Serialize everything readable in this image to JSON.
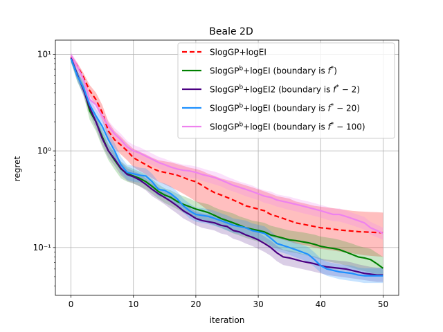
{
  "chart_data": {
    "type": "line",
    "title": "Beale 2D",
    "xlabel": "iteration",
    "ylabel": "regret",
    "yscale": "log",
    "xlim": [
      -2.5,
      52.5
    ],
    "ylim": [
      0.032,
      14
    ],
    "xticks": [
      0,
      10,
      20,
      30,
      40,
      50
    ],
    "xtick_labels": [
      "0",
      "10",
      "20",
      "30",
      "40",
      "50"
    ],
    "yticks": [
      0.1,
      1,
      10
    ],
    "ytick_labels": [
      "10⁻¹",
      "10⁰",
      "10¹"
    ],
    "grid": true,
    "legend_position": "top-right",
    "series": [
      {
        "name_parts": [
          "SlogGP+logEI"
        ],
        "style": "dashed",
        "color": "#ff0000",
        "band_color": "#ff0000",
        "x": [
          0,
          1,
          2,
          3,
          4,
          5,
          6,
          7,
          8,
          9,
          10,
          11,
          12,
          13,
          14,
          15,
          16,
          17,
          18,
          19,
          20,
          21,
          22,
          23,
          24,
          25,
          26,
          27,
          28,
          29,
          30,
          31,
          32,
          33,
          34,
          35,
          36,
          37,
          38,
          39,
          40,
          41,
          42,
          43,
          44,
          45,
          46,
          47,
          48,
          49,
          50
        ],
        "values": [
          9.5,
          7.6,
          5.8,
          4.2,
          3.4,
          2.5,
          1.6,
          1.3,
          1.15,
          1.0,
          0.85,
          0.78,
          0.72,
          0.66,
          0.62,
          0.6,
          0.58,
          0.56,
          0.53,
          0.5,
          0.48,
          0.44,
          0.4,
          0.37,
          0.35,
          0.33,
          0.31,
          0.29,
          0.27,
          0.26,
          0.25,
          0.24,
          0.22,
          0.21,
          0.2,
          0.19,
          0.18,
          0.175,
          0.17,
          0.165,
          0.16,
          0.158,
          0.155,
          0.152,
          0.15,
          0.148,
          0.146,
          0.145,
          0.144,
          0.143,
          0.142
        ],
        "lower": [
          9.0,
          7.0,
          5.2,
          3.7,
          2.9,
          2.1,
          1.3,
          1.05,
          0.92,
          0.8,
          0.68,
          0.62,
          0.57,
          0.52,
          0.48,
          0.45,
          0.42,
          0.39,
          0.36,
          0.33,
          0.3,
          0.27,
          0.24,
          0.22,
          0.2,
          0.19,
          0.18,
          0.17,
          0.16,
          0.155,
          0.15,
          0.14,
          0.13,
          0.125,
          0.12,
          0.115,
          0.11,
          0.107,
          0.104,
          0.1,
          0.097,
          0.095,
          0.093,
          0.091,
          0.089,
          0.087,
          0.085,
          0.083,
          0.082,
          0.081,
          0.08
        ],
        "upper": [
          10.0,
          8.2,
          6.4,
          4.8,
          4.0,
          3.0,
          2.0,
          1.6,
          1.4,
          1.2,
          1.05,
          0.98,
          0.92,
          0.85,
          0.8,
          0.78,
          0.76,
          0.73,
          0.7,
          0.67,
          0.65,
          0.62,
          0.58,
          0.55,
          0.52,
          0.5,
          0.48,
          0.46,
          0.44,
          0.42,
          0.4,
          0.38,
          0.36,
          0.34,
          0.33,
          0.32,
          0.3,
          0.29,
          0.28,
          0.27,
          0.265,
          0.26,
          0.255,
          0.25,
          0.245,
          0.24,
          0.237,
          0.235,
          0.233,
          0.232,
          0.23
        ]
      },
      {
        "name_parts": [
          "SlogGP",
          "b",
          "+logEI (boundary is ",
          "f",
          "*",
          ")"
        ],
        "style": "solid",
        "color": "#008000",
        "band_color": "#2ca02c",
        "x": [
          0,
          1,
          2,
          3,
          4,
          5,
          6,
          7,
          8,
          9,
          10,
          11,
          12,
          13,
          14,
          15,
          16,
          17,
          18,
          19,
          20,
          21,
          22,
          23,
          24,
          25,
          26,
          27,
          28,
          29,
          30,
          31,
          32,
          33,
          34,
          35,
          36,
          37,
          38,
          39,
          40,
          41,
          42,
          43,
          44,
          45,
          46,
          47,
          48,
          49,
          50
        ],
        "values": [
          9.0,
          6.0,
          4.5,
          2.6,
          2.0,
          1.4,
          1.0,
          0.8,
          0.65,
          0.58,
          0.55,
          0.52,
          0.48,
          0.43,
          0.38,
          0.35,
          0.33,
          0.3,
          0.28,
          0.265,
          0.25,
          0.24,
          0.23,
          0.215,
          0.2,
          0.19,
          0.18,
          0.17,
          0.16,
          0.155,
          0.15,
          0.145,
          0.135,
          0.13,
          0.125,
          0.12,
          0.118,
          0.115,
          0.112,
          0.108,
          0.103,
          0.1,
          0.098,
          0.095,
          0.09,
          0.085,
          0.08,
          0.078,
          0.075,
          0.068,
          0.061
        ],
        "lower": [
          8.3,
          5.2,
          3.8,
          2.1,
          1.6,
          1.1,
          0.8,
          0.64,
          0.52,
          0.48,
          0.46,
          0.43,
          0.4,
          0.36,
          0.32,
          0.29,
          0.27,
          0.25,
          0.23,
          0.215,
          0.2,
          0.19,
          0.18,
          0.17,
          0.16,
          0.15,
          0.14,
          0.133,
          0.126,
          0.12,
          0.115,
          0.11,
          0.103,
          0.098,
          0.094,
          0.09,
          0.088,
          0.085,
          0.082,
          0.079,
          0.075,
          0.072,
          0.07,
          0.068,
          0.065,
          0.062,
          0.059,
          0.057,
          0.055,
          0.052,
          0.05
        ],
        "upper": [
          9.7,
          6.8,
          5.2,
          3.1,
          2.4,
          1.7,
          1.2,
          0.96,
          0.78,
          0.69,
          0.65,
          0.61,
          0.57,
          0.51,
          0.45,
          0.41,
          0.39,
          0.36,
          0.34,
          0.32,
          0.3,
          0.29,
          0.28,
          0.26,
          0.245,
          0.235,
          0.225,
          0.21,
          0.2,
          0.19,
          0.185,
          0.18,
          0.168,
          0.162,
          0.156,
          0.15,
          0.147,
          0.144,
          0.14,
          0.136,
          0.13,
          0.127,
          0.124,
          0.12,
          0.115,
          0.11,
          0.104,
          0.1,
          0.097,
          0.088,
          0.08
        ]
      },
      {
        "name_parts": [
          "SlogGP",
          "b",
          "+logEI2 (boundary is ",
          "f",
          "*",
          " − 2)"
        ],
        "style": "solid",
        "color": "#4b0082",
        "band_color": "#6a3d9a",
        "x": [
          0,
          1,
          2,
          3,
          4,
          5,
          6,
          7,
          8,
          9,
          10,
          11,
          12,
          13,
          14,
          15,
          16,
          17,
          18,
          19,
          20,
          21,
          22,
          23,
          24,
          25,
          26,
          27,
          28,
          29,
          30,
          31,
          32,
          33,
          34,
          35,
          36,
          37,
          38,
          39,
          40,
          41,
          42,
          43,
          44,
          45,
          46,
          47,
          48,
          49,
          50
        ],
        "values": [
          9.2,
          6.2,
          4.3,
          2.8,
          2.0,
          1.35,
          1.0,
          0.82,
          0.66,
          0.57,
          0.54,
          0.5,
          0.45,
          0.4,
          0.36,
          0.33,
          0.3,
          0.27,
          0.24,
          0.22,
          0.2,
          0.19,
          0.185,
          0.18,
          0.17,
          0.165,
          0.15,
          0.145,
          0.135,
          0.128,
          0.12,
          0.11,
          0.1,
          0.088,
          0.08,
          0.078,
          0.075,
          0.072,
          0.07,
          0.068,
          0.065,
          0.063,
          0.062,
          0.061,
          0.06,
          0.058,
          0.056,
          0.054,
          0.053,
          0.052,
          0.052
        ],
        "lower": [
          8.5,
          5.5,
          3.7,
          2.4,
          1.7,
          1.15,
          0.85,
          0.7,
          0.56,
          0.49,
          0.46,
          0.43,
          0.39,
          0.34,
          0.31,
          0.28,
          0.25,
          0.225,
          0.2,
          0.185,
          0.17,
          0.16,
          0.155,
          0.15,
          0.14,
          0.135,
          0.123,
          0.118,
          0.11,
          0.104,
          0.097,
          0.09,
          0.082,
          0.072,
          0.066,
          0.064,
          0.062,
          0.06,
          0.058,
          0.056,
          0.054,
          0.052,
          0.051,
          0.05,
          0.049,
          0.048,
          0.047,
          0.046,
          0.045,
          0.044,
          0.044
        ],
        "upper": [
          9.9,
          6.9,
          4.9,
          3.2,
          2.3,
          1.55,
          1.15,
          0.95,
          0.77,
          0.66,
          0.62,
          0.58,
          0.52,
          0.46,
          0.42,
          0.38,
          0.35,
          0.32,
          0.285,
          0.26,
          0.235,
          0.225,
          0.22,
          0.213,
          0.2,
          0.195,
          0.178,
          0.172,
          0.16,
          0.152,
          0.143,
          0.13,
          0.118,
          0.104,
          0.095,
          0.093,
          0.09,
          0.086,
          0.083,
          0.081,
          0.077,
          0.075,
          0.074,
          0.073,
          0.072,
          0.07,
          0.067,
          0.065,
          0.063,
          0.062,
          0.062
        ]
      },
      {
        "name_parts": [
          "SlogGP",
          "b",
          "+logEI (boundary is ",
          "f",
          "*",
          " − 20)"
        ],
        "style": "solid",
        "color": "#1e90ff",
        "band_color": "#1e90ff",
        "x": [
          0,
          1,
          2,
          3,
          4,
          5,
          6,
          7,
          8,
          9,
          10,
          11,
          12,
          13,
          14,
          15,
          16,
          17,
          18,
          19,
          20,
          21,
          22,
          23,
          24,
          25,
          26,
          27,
          28,
          29,
          30,
          31,
          32,
          33,
          34,
          35,
          36,
          37,
          38,
          39,
          40,
          41,
          42,
          43,
          44,
          45,
          46,
          47,
          48,
          49,
          50
        ],
        "values": [
          9.0,
          6.0,
          4.5,
          3.0,
          2.3,
          1.8,
          1.3,
          1.0,
          0.72,
          0.6,
          0.58,
          0.56,
          0.55,
          0.48,
          0.4,
          0.39,
          0.36,
          0.32,
          0.27,
          0.24,
          0.22,
          0.215,
          0.21,
          0.2,
          0.19,
          0.18,
          0.17,
          0.165,
          0.16,
          0.15,
          0.145,
          0.14,
          0.125,
          0.11,
          0.105,
          0.1,
          0.095,
          0.09,
          0.085,
          0.075,
          0.065,
          0.06,
          0.058,
          0.056,
          0.055,
          0.054,
          0.052,
          0.051,
          0.051,
          0.051,
          0.051
        ],
        "lower": [
          8.3,
          5.3,
          3.9,
          2.6,
          1.95,
          1.5,
          1.08,
          0.83,
          0.6,
          0.5,
          0.48,
          0.47,
          0.46,
          0.4,
          0.34,
          0.33,
          0.3,
          0.27,
          0.23,
          0.2,
          0.185,
          0.18,
          0.175,
          0.167,
          0.16,
          0.15,
          0.142,
          0.138,
          0.133,
          0.125,
          0.12,
          0.116,
          0.104,
          0.092,
          0.088,
          0.084,
          0.079,
          0.075,
          0.071,
          0.063,
          0.055,
          0.051,
          0.049,
          0.047,
          0.046,
          0.045,
          0.044,
          0.043,
          0.043,
          0.043,
          0.043
        ],
        "upper": [
          9.7,
          6.8,
          5.2,
          3.5,
          2.7,
          2.15,
          1.55,
          1.2,
          0.87,
          0.72,
          0.7,
          0.67,
          0.66,
          0.58,
          0.48,
          0.46,
          0.43,
          0.38,
          0.32,
          0.285,
          0.26,
          0.255,
          0.25,
          0.24,
          0.227,
          0.215,
          0.2,
          0.195,
          0.19,
          0.178,
          0.172,
          0.166,
          0.148,
          0.13,
          0.125,
          0.119,
          0.113,
          0.107,
          0.101,
          0.089,
          0.077,
          0.071,
          0.069,
          0.067,
          0.066,
          0.065,
          0.062,
          0.061,
          0.061,
          0.061,
          0.061
        ]
      },
      {
        "name_parts": [
          "SlogGP",
          "b",
          "+logEI (boundary is ",
          "f",
          "*",
          " − 100)"
        ],
        "style": "solid",
        "color": "#ee82ee",
        "band_color": "#ee82ee",
        "x": [
          0,
          1,
          2,
          3,
          4,
          5,
          6,
          7,
          8,
          9,
          10,
          11,
          12,
          13,
          14,
          15,
          16,
          17,
          18,
          19,
          20,
          21,
          22,
          23,
          24,
          25,
          26,
          27,
          28,
          29,
          30,
          31,
          32,
          33,
          34,
          35,
          36,
          37,
          38,
          39,
          40,
          41,
          42,
          43,
          44,
          45,
          46,
          47,
          48,
          49,
          50
        ],
        "values": [
          9.8,
          7.5,
          5.5,
          3.4,
          3.0,
          2.3,
          1.8,
          1.5,
          1.3,
          1.1,
          1.0,
          0.95,
          0.88,
          0.82,
          0.76,
          0.72,
          0.68,
          0.65,
          0.63,
          0.62,
          0.6,
          0.57,
          0.55,
          0.53,
          0.5,
          0.47,
          0.44,
          0.42,
          0.4,
          0.38,
          0.36,
          0.34,
          0.33,
          0.31,
          0.3,
          0.29,
          0.28,
          0.27,
          0.26,
          0.25,
          0.24,
          0.23,
          0.22,
          0.22,
          0.21,
          0.2,
          0.19,
          0.18,
          0.16,
          0.15,
          0.14
        ],
        "lower": [
          9.0,
          6.8,
          4.9,
          3.0,
          2.6,
          2.0,
          1.55,
          1.3,
          1.12,
          0.95,
          0.86,
          0.82,
          0.76,
          0.71,
          0.66,
          0.62,
          0.59,
          0.56,
          0.54,
          0.53,
          0.52,
          0.49,
          0.47,
          0.45,
          0.43,
          0.4,
          0.38,
          0.36,
          0.34,
          0.325,
          0.31,
          0.29,
          0.28,
          0.265,
          0.255,
          0.245,
          0.237,
          0.228,
          0.22,
          0.212,
          0.204,
          0.195,
          0.187,
          0.186,
          0.178,
          0.17,
          0.162,
          0.153,
          0.136,
          0.128,
          0.12
        ],
        "upper": [
          10.6,
          8.2,
          6.1,
          3.8,
          3.4,
          2.6,
          2.05,
          1.72,
          1.5,
          1.27,
          1.15,
          1.09,
          1.01,
          0.94,
          0.87,
          0.83,
          0.78,
          0.75,
          0.72,
          0.71,
          0.69,
          0.66,
          0.63,
          0.61,
          0.58,
          0.54,
          0.51,
          0.48,
          0.46,
          0.44,
          0.41,
          0.39,
          0.38,
          0.355,
          0.345,
          0.335,
          0.322,
          0.31,
          0.3,
          0.288,
          0.276,
          0.265,
          0.253,
          0.254,
          0.242,
          0.23,
          0.218,
          0.207,
          0.184,
          0.172,
          0.16
        ]
      }
    ]
  }
}
